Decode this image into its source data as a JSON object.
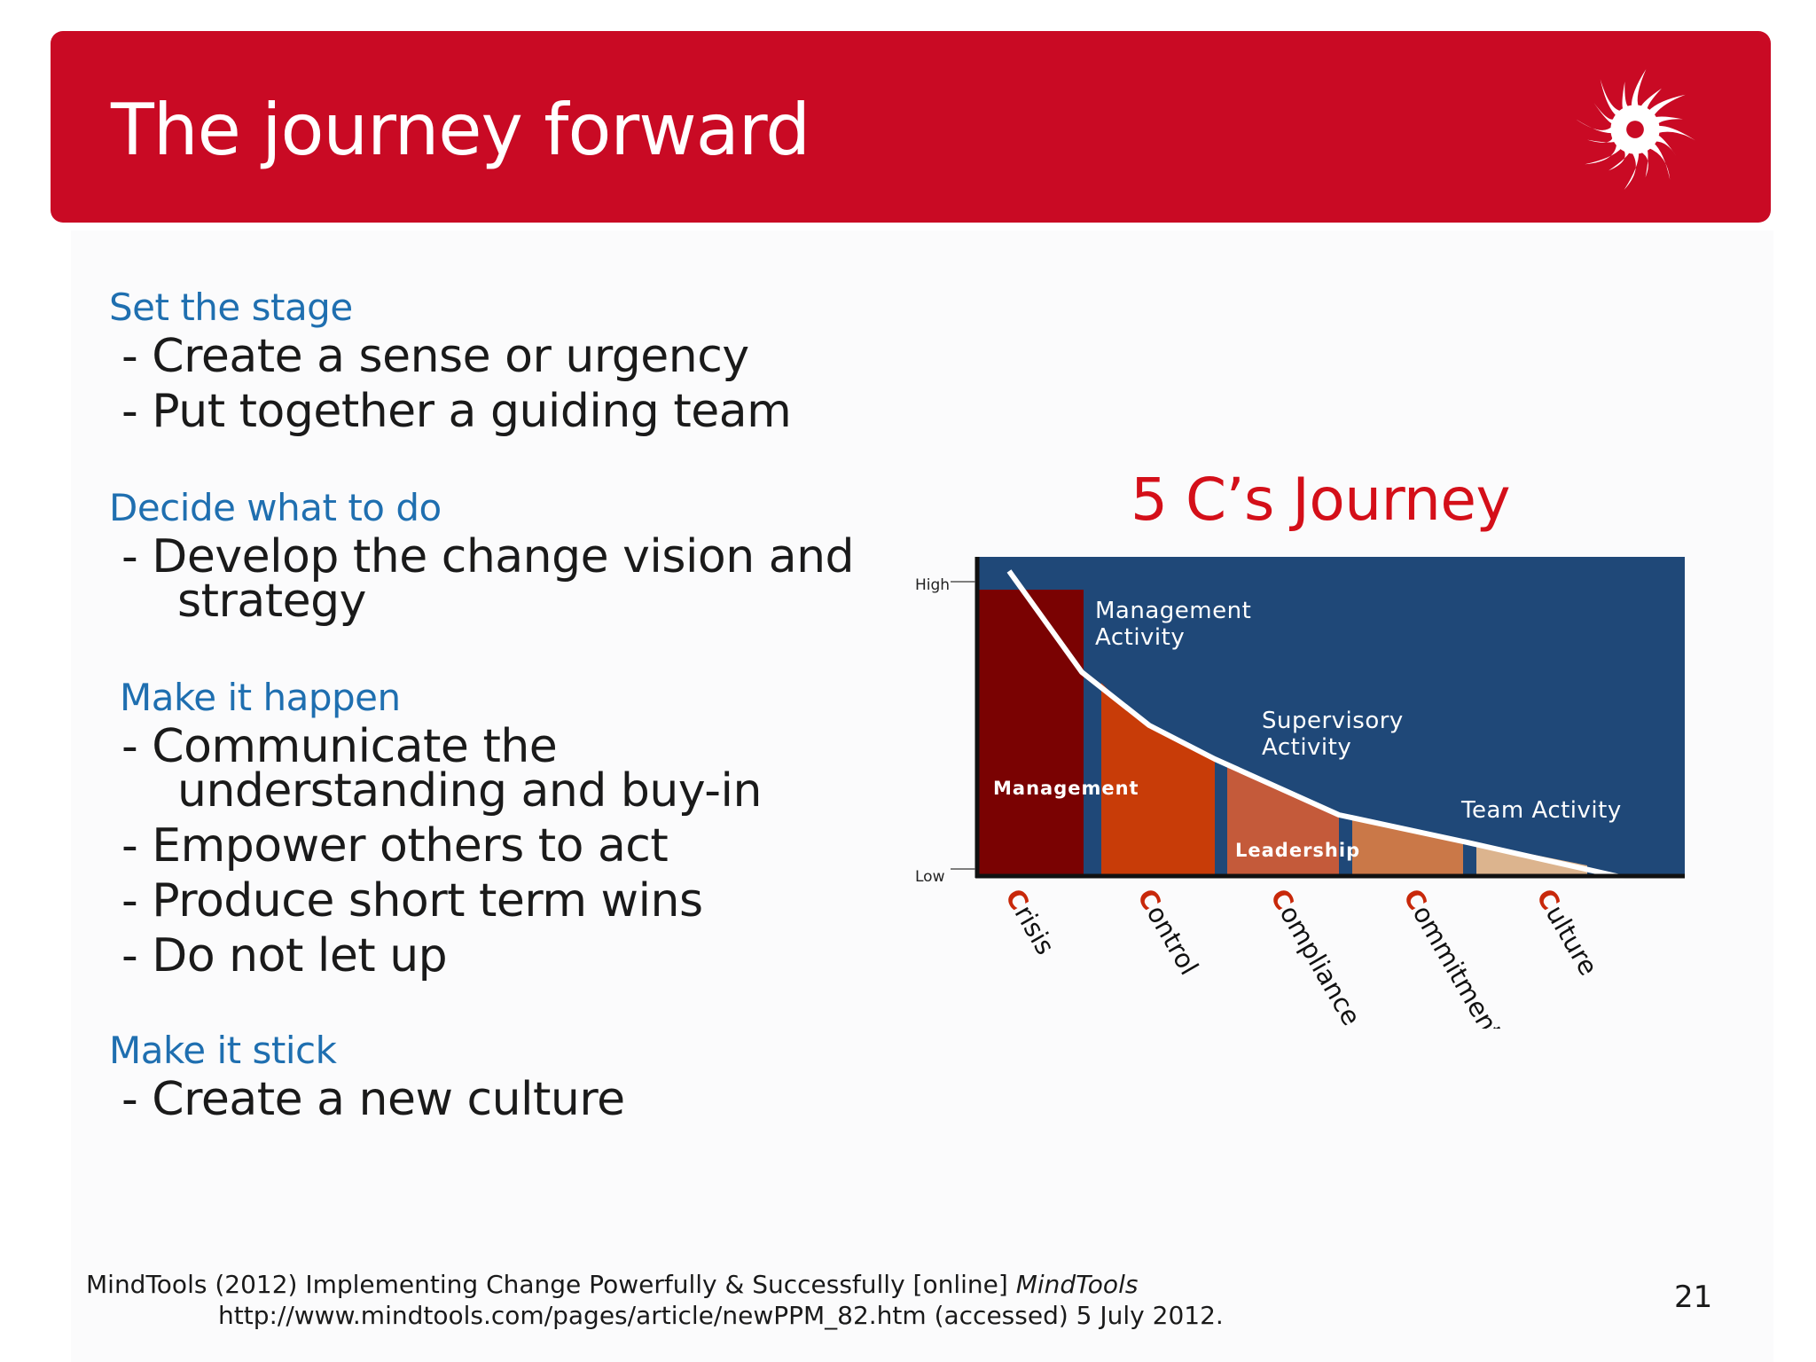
{
  "slide": {
    "title": "The journey forward",
    "page_number": "21"
  },
  "sections": [
    {
      "heading": "Set the stage",
      "bullets": [
        "- Create a sense or urgency",
        "- Put together a guiding team"
      ]
    },
    {
      "heading": "Decide what to do",
      "bullets": [
        "- Develop the change vision and",
        "strategy"
      ]
    },
    {
      "heading": "Make it happen",
      "bullets": [
        "- Communicate the",
        "understanding and buy-in",
        "- Empower others to act",
        "- Produce short term wins",
        "- Do not let up"
      ]
    },
    {
      "heading": "Make it stick",
      "bullets": [
        "- Create a new culture"
      ]
    }
  ],
  "chart": {
    "title": "5 C’s Journey",
    "y_high_label": "High",
    "y_low_label": "Low",
    "area_labels": {
      "management_activity": [
        "Management",
        "Activity"
      ],
      "supervisory_activity": [
        "Supervisory",
        "Activity"
      ],
      "team_activity": "Team Activity",
      "management": "Management",
      "leadership": "Leadership"
    },
    "stages": [
      {
        "initial": "C",
        "rest": "risis"
      },
      {
        "initial": "C",
        "rest": "ontrol"
      },
      {
        "initial": "C",
        "rest": "ompliance"
      },
      {
        "initial": "C",
        "rest": "ommitment"
      },
      {
        "initial": "C",
        "rest": "ulture"
      }
    ],
    "colors": {
      "background": "#1f4878",
      "crisis": "#7a0202",
      "control": "#c83c08",
      "compliance": "#c45a3a",
      "commitment": "#ca7848",
      "culture": "#dcb48e",
      "stage_initial": "#c8280a"
    }
  },
  "footnote": {
    "line1_prefix": "MindTools (2012) Implementing Change Powerfully & Successfully [online] ",
    "line1_source": "MindTools",
    "line2": "http://www.mindtools.com/pages/article/newPPM_82.htm (accessed) 5 July 2012."
  },
  "logo": {
    "icon": "sun-icon",
    "color": "#ffffff"
  }
}
